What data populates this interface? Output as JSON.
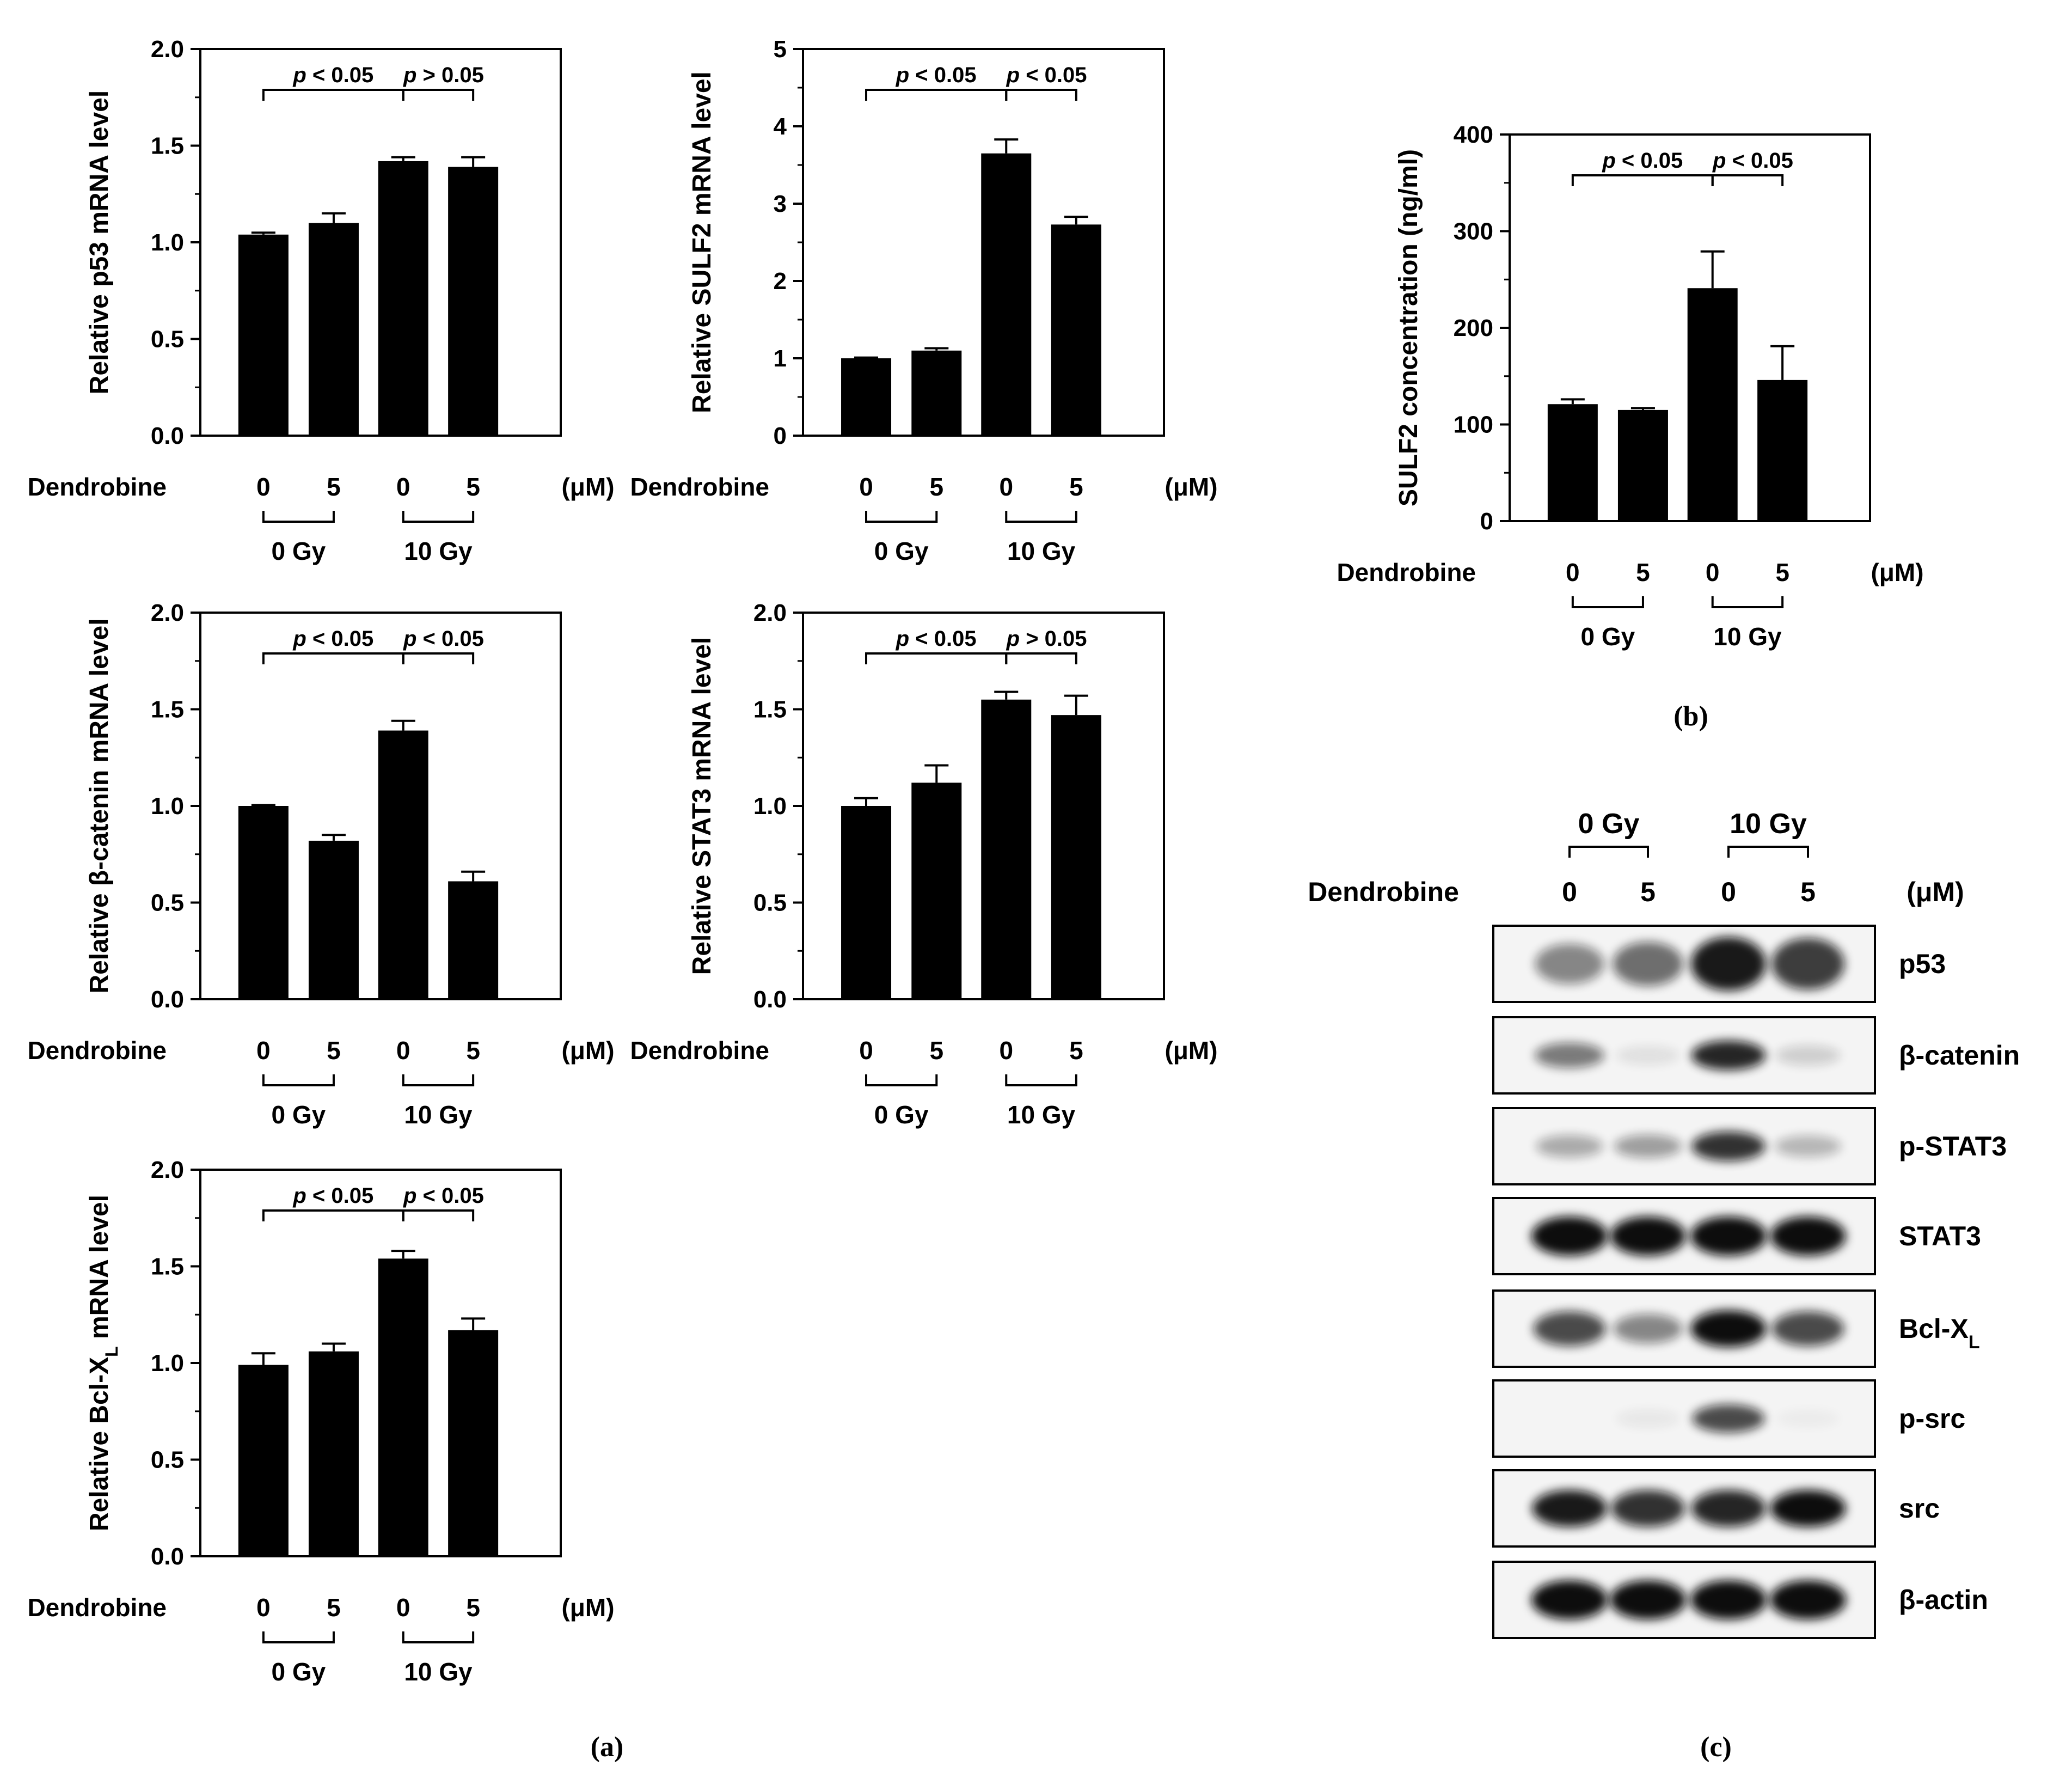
{
  "colors": {
    "bar": "#000000",
    "axis": "#000000",
    "background": "#ffffff",
    "blot_band": "#111111",
    "blot_bg": "#f4f4f4"
  },
  "panel_labels": {
    "a": "(a)",
    "b": "(b)",
    "c": "(c)"
  },
  "common": {
    "treatment_label": "Dendrobine",
    "doses": [
      "0",
      "5",
      "0",
      "5"
    ],
    "unit": "(μM)",
    "groups": [
      "0 Gy",
      "10 Gy"
    ]
  },
  "chart_data": [
    {
      "type": "bar",
      "id": "p53",
      "ylabel": "Relative p53 mRNA level",
      "ylim": [
        0,
        2.0
      ],
      "ticks": [
        "0.0",
        "0.5",
        "1.0",
        "1.5",
        "2.0"
      ],
      "tick_values": [
        0,
        0.5,
        1.0,
        1.5,
        2.0
      ],
      "categories": [
        "0 Gy, 0 μM",
        "0 Gy, 5 μM",
        "10 Gy, 0 μM",
        "10 Gy, 5 μM"
      ],
      "values": [
        1.04,
        1.1,
        1.42,
        1.39
      ],
      "errors": [
        0.01,
        0.05,
        0.02,
        0.05
      ],
      "sig": [
        {
          "p": "p",
          "text": " < 0.05"
        },
        {
          "p": "p",
          "text": " > 0.05"
        }
      ]
    },
    {
      "type": "bar",
      "id": "sulf2mrna",
      "ylabel": "Relative SULF2 mRNA level",
      "ylim": [
        0,
        5
      ],
      "ticks": [
        "0",
        "1",
        "2",
        "3",
        "4",
        "5"
      ],
      "tick_values": [
        0,
        1,
        2,
        3,
        4,
        5
      ],
      "categories": [
        "0 Gy, 0 μM",
        "0 Gy, 5 μM",
        "10 Gy, 0 μM",
        "10 Gy, 5 μM"
      ],
      "values": [
        1.0,
        1.1,
        3.65,
        2.73
      ],
      "errors": [
        0.01,
        0.03,
        0.18,
        0.1
      ],
      "sig": [
        {
          "p": "p",
          "text": " < 0.05"
        },
        {
          "p": "p",
          "text": " < 0.05"
        }
      ]
    },
    {
      "type": "bar",
      "id": "bcatenin",
      "ylabel": "Relative β-catenin mRNA level",
      "ylim": [
        0,
        2.0
      ],
      "ticks": [
        "0.0",
        "0.5",
        "1.0",
        "1.5",
        "2.0"
      ],
      "tick_values": [
        0,
        0.5,
        1.0,
        1.5,
        2.0
      ],
      "categories": [
        "0 Gy, 0 μM",
        "0 Gy, 5 μM",
        "10 Gy, 0 μM",
        "10 Gy, 5 μM"
      ],
      "values": [
        1.0,
        0.82,
        1.39,
        0.61
      ],
      "errors": [
        0.005,
        0.03,
        0.05,
        0.05
      ],
      "sig": [
        {
          "p": "p",
          "text": " < 0.05"
        },
        {
          "p": "p",
          "text": " < 0.05"
        }
      ]
    },
    {
      "type": "bar",
      "id": "stat3",
      "ylabel": "Relative STAT3 mRNA level",
      "ylim": [
        0,
        2.0
      ],
      "ticks": [
        "0.0",
        "0.5",
        "1.0",
        "1.5",
        "2.0"
      ],
      "tick_values": [
        0,
        0.5,
        1.0,
        1.5,
        2.0
      ],
      "categories": [
        "0 Gy, 0 μM",
        "0 Gy, 5 μM",
        "10 Gy, 0 μM",
        "10 Gy, 5 μM"
      ],
      "values": [
        1.0,
        1.12,
        1.55,
        1.47
      ],
      "errors": [
        0.04,
        0.09,
        0.04,
        0.1
      ],
      "sig": [
        {
          "p": "p",
          "text": " < 0.05"
        },
        {
          "p": "p",
          "text": " > 0.05"
        }
      ]
    },
    {
      "type": "bar",
      "id": "bclxl",
      "ylabel": "Relative Bcl-X",
      "ylabel_sub": "L",
      "ylabel_tail": " mRNA level",
      "ylim": [
        0,
        2.0
      ],
      "ticks": [
        "0.0",
        "0.5",
        "1.0",
        "1.5",
        "2.0"
      ],
      "tick_values": [
        0,
        0.5,
        1.0,
        1.5,
        2.0
      ],
      "categories": [
        "0 Gy, 0 μM",
        "0 Gy, 5 μM",
        "10 Gy, 0 μM",
        "10 Gy, 5 μM"
      ],
      "values": [
        0.99,
        1.06,
        1.54,
        1.17
      ],
      "errors": [
        0.06,
        0.04,
        0.04,
        0.06
      ],
      "sig": [
        {
          "p": "p",
          "text": " < 0.05"
        },
        {
          "p": "p",
          "text": " < 0.05"
        }
      ]
    },
    {
      "type": "bar",
      "id": "sulf2conc",
      "ylabel": "SULF2 concentration (ng/ml)",
      "ylim": [
        0,
        400
      ],
      "ticks": [
        "0",
        "100",
        "200",
        "300",
        "400"
      ],
      "tick_values": [
        0,
        100,
        200,
        300,
        400
      ],
      "categories": [
        "0 Gy, 0 μM",
        "0 Gy, 5 μM",
        "10 Gy, 0 μM",
        "10 Gy, 5 μM"
      ],
      "values": [
        121,
        115,
        241,
        146
      ],
      "errors": [
        5,
        2,
        38,
        35
      ],
      "sig": [
        {
          "p": "p",
          "text": " < 0.05"
        },
        {
          "p": "p",
          "text": " < 0.05"
        }
      ]
    }
  ],
  "western": {
    "header_groups": [
      "0 Gy",
      "10 Gy"
    ],
    "treatment_label": "Dendrobine",
    "doses": [
      "0",
      "5",
      "0",
      "5"
    ],
    "unit": "(μM)",
    "rows": [
      {
        "label": "p53",
        "sub": "",
        "intensity": [
          0.45,
          0.55,
          0.9,
          0.75
        ],
        "thickness": 1.6
      },
      {
        "label": "β-catenin",
        "sub": "",
        "intensity": [
          0.5,
          0.08,
          0.85,
          0.15
        ],
        "thickness": 0.6
      },
      {
        "label": "p-STAT3",
        "sub": "",
        "intensity": [
          0.3,
          0.35,
          0.8,
          0.25
        ],
        "thickness": 0.6
      },
      {
        "label": "STAT3",
        "sub": "",
        "intensity": [
          1.0,
          0.95,
          1.0,
          0.95
        ],
        "thickness": 1.0
      },
      {
        "label": "Bcl-X",
        "sub": "L",
        "intensity": [
          0.7,
          0.45,
          0.95,
          0.7
        ],
        "thickness": 0.9
      },
      {
        "label": "p-src",
        "sub": "",
        "intensity": [
          0.02,
          0.05,
          0.7,
          0.03
        ],
        "thickness": 0.6
      },
      {
        "label": "src",
        "sub": "",
        "intensity": [
          0.9,
          0.8,
          0.85,
          0.95
        ],
        "thickness": 0.9
      },
      {
        "label": "β-actin",
        "sub": "",
        "intensity": [
          1.0,
          1.0,
          1.0,
          1.0
        ],
        "thickness": 1.0
      }
    ]
  }
}
